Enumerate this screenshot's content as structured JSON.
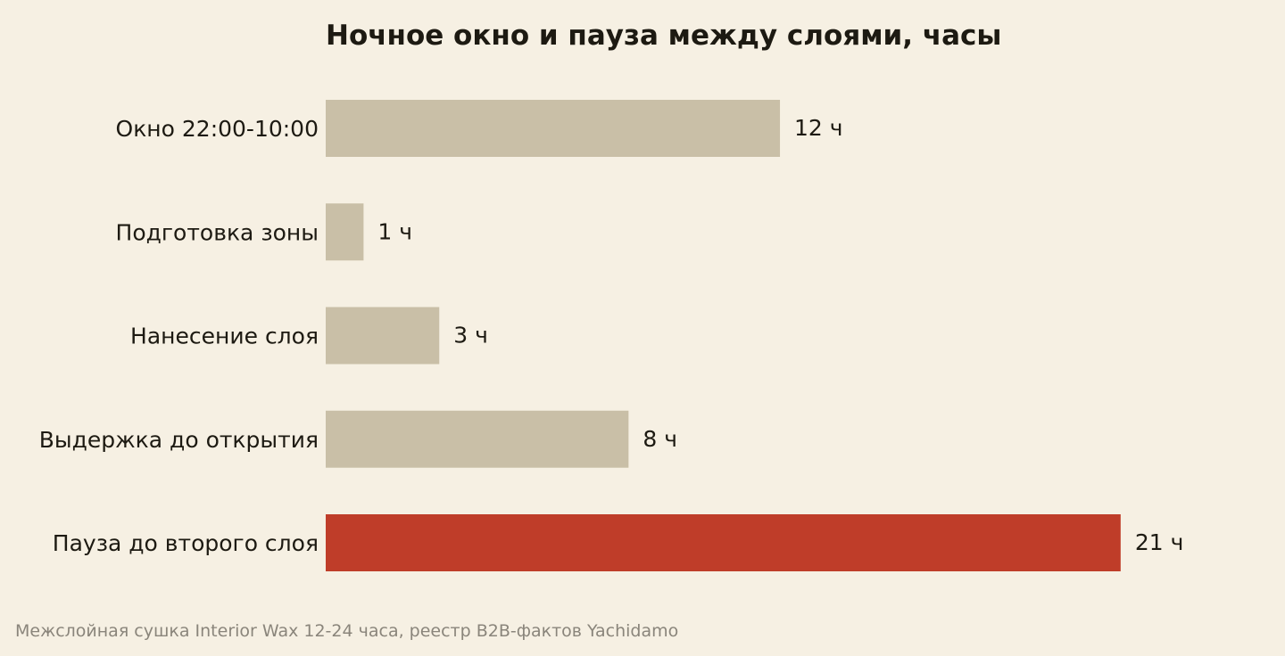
{
  "chart_data": {
    "type": "bar",
    "orientation": "horizontal",
    "title": "Ночное окно и пауза между слоями, часы",
    "categories": [
      "Окно 22:00-10:00",
      "Подготовка зоны",
      "Нанесение слоя",
      "Выдержка до открытия",
      "Пауза до второго слоя"
    ],
    "values": [
      12,
      1,
      3,
      8,
      21
    ],
    "value_labels": [
      "12 ч",
      "1 ч",
      "3 ч",
      "8 ч",
      "21 ч"
    ],
    "unit": "ч",
    "xlim": [
      0,
      24
    ],
    "grid": false,
    "colors": {
      "default": "#c9bfa7",
      "highlight": "#bf3d29",
      "text": "#1d1a12",
      "source_text": "#8a857b",
      "background": "#f6f0e3"
    },
    "highlight_index": 4,
    "source": "Межслойная сушка Interior Wax 12-24 часа, реестр B2B-фактов Yachidamo"
  }
}
